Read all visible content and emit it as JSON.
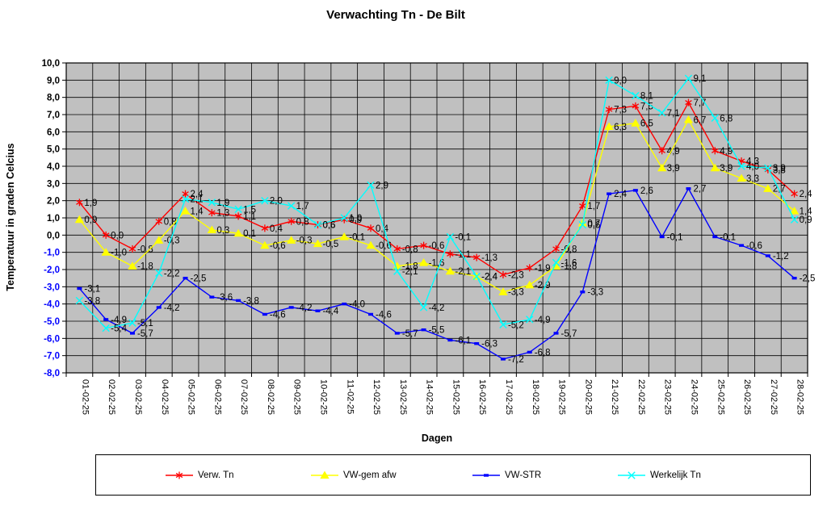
{
  "title": "Verwachting Tn - De Bilt",
  "x_axis": {
    "title": "Dagen"
  },
  "y_axis": {
    "title": "Temperatuur in graden Celcius",
    "min": -8,
    "max": 10,
    "step": 1,
    "positive_label_color": "#000000",
    "negative_label_color": "#0000ff"
  },
  "plot": {
    "background": "#c0c0c0",
    "gridline_color": "#000000",
    "border_color": "#000000"
  },
  "chart_data": {
    "type": "line",
    "categories": [
      "01-02-25",
      "02-02-25",
      "03-02-25",
      "04-02-25",
      "05-02-25",
      "06-02-25",
      "07-02-25",
      "08-02-25",
      "09-02-25",
      "10-02-25",
      "11-02-25",
      "12-02-25",
      "13-02-25",
      "14-02-25",
      "15-02-25",
      "16-02-25",
      "17-02-25",
      "18-02-25",
      "19-02-25",
      "20-02-25",
      "21-02-25",
      "22-02-25",
      "23-02-25",
      "24-02-25",
      "25-02-25",
      "26-02-25",
      "27-02-25",
      "28-02-25"
    ],
    "title": "Verwachting Tn - De Bilt",
    "xlabel": "Dagen",
    "ylabel": "Temperatuur in graden Celcius",
    "ylim": [
      -8,
      10
    ],
    "grid": true,
    "legend_position": "bottom",
    "data_labels": true,
    "decimal_separator": ",",
    "series": [
      {
        "name": "Verw. Tn",
        "color": "#ff0000",
        "marker": "asterisk",
        "values": [
          1.9,
          0.0,
          -0.8,
          0.8,
          2.4,
          1.3,
          1.1,
          0.4,
          0.8,
          0.6,
          0.9,
          0.4,
          -0.8,
          -0.6,
          -1.1,
          -1.3,
          -2.3,
          -1.9,
          -0.8,
          1.7,
          7.3,
          7.5,
          4.9,
          7.7,
          4.9,
          4.3,
          3.8,
          2.4
        ]
      },
      {
        "name": "VW-gem afw",
        "color": "#ffff00",
        "marker": "triangle",
        "values": [
          0.9,
          -1.0,
          -1.8,
          -0.3,
          1.4,
          0.3,
          0.1,
          -0.6,
          -0.3,
          -0.5,
          -0.1,
          -0.6,
          -1.8,
          -1.6,
          -2.1,
          -2.4,
          -3.3,
          -2.9,
          -1.8,
          0.7,
          6.3,
          6.5,
          3.9,
          6.7,
          3.9,
          3.3,
          2.7,
          1.4
        ]
      },
      {
        "name": "VW-STR",
        "color": "#0000ff",
        "marker": "dash",
        "values": [
          -3.1,
          -4.9,
          -5.7,
          -4.2,
          -2.5,
          -3.6,
          -3.8,
          -4.6,
          -4.2,
          -4.4,
          -4.0,
          -4.6,
          -5.7,
          -5.5,
          -6.1,
          -6.3,
          -7.2,
          -6.8,
          -5.7,
          -3.3,
          2.4,
          2.6,
          -0.1,
          2.7,
          -0.1,
          -0.6,
          -1.2,
          -2.5
        ]
      },
      {
        "name": "Werkelijk Tn",
        "color": "#00ffff",
        "marker": "x",
        "values": [
          -3.8,
          -5.4,
          -5.1,
          -2.2,
          2.1,
          1.9,
          1.5,
          2.0,
          1.7,
          0.6,
          1.0,
          2.9,
          -2.1,
          -4.2,
          -0.1,
          -2.4,
          -5.2,
          -4.9,
          -1.6,
          0.6,
          9.0,
          8.1,
          7.1,
          9.1,
          6.8,
          4.0,
          3.9,
          0.9
        ]
      }
    ]
  },
  "legend": {
    "items": [
      "Verw. Tn",
      "VW-gem afw",
      "VW-STR",
      "Werkelijk Tn"
    ]
  }
}
